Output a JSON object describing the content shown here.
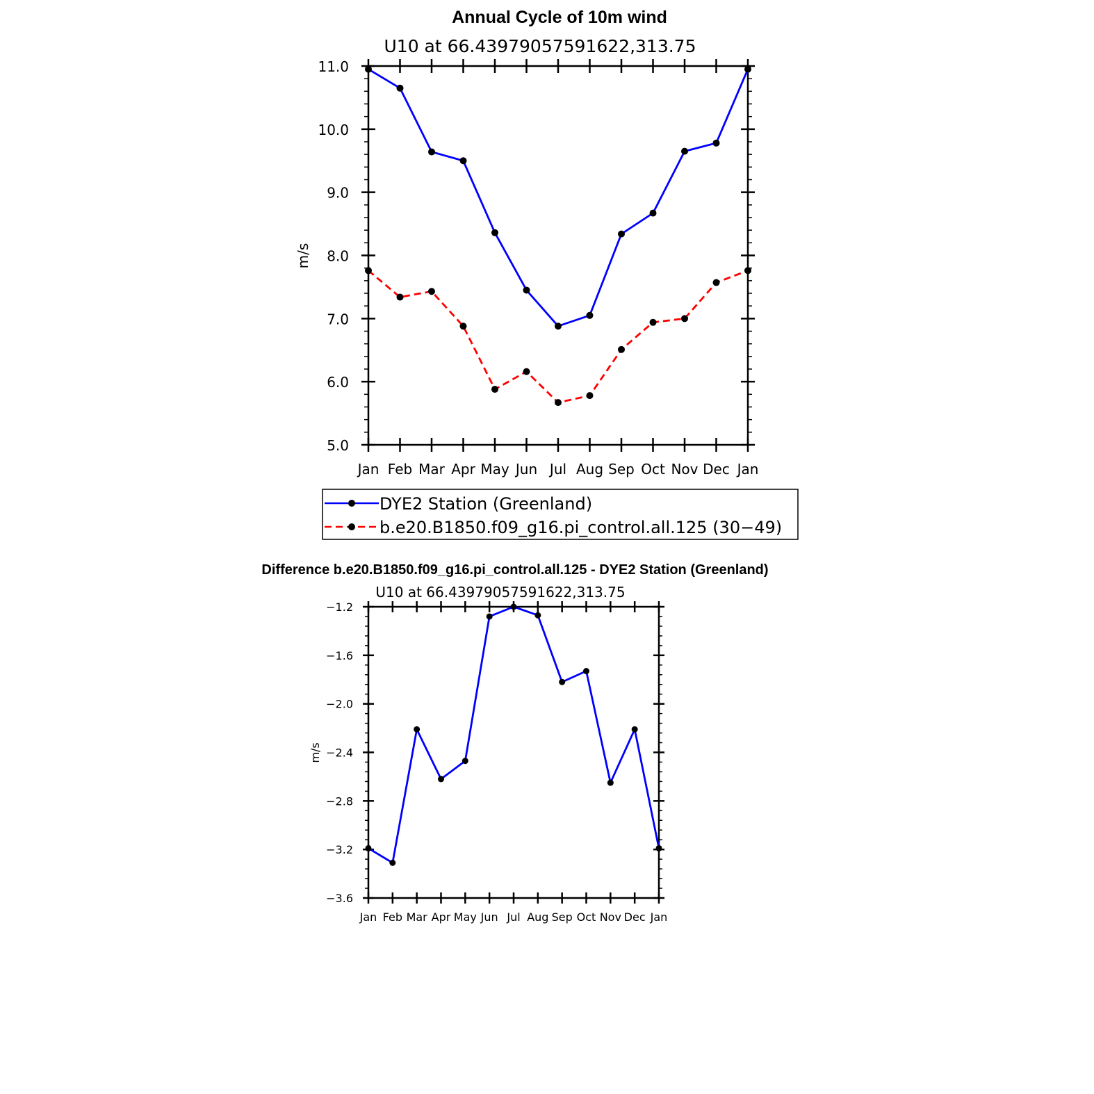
{
  "colors": {
    "obs": "#0000ff",
    "model": "#ff0000",
    "diff": "#0000ff",
    "axis": "#000000",
    "marker": "#000000"
  },
  "chart_data": [
    {
      "type": "line",
      "title": "Annual Cycle of 10m wind",
      "subtitle": "U10  at  66.43979057591622,313.75",
      "xlabel": "",
      "ylabel": "m/s",
      "categories": [
        "Jan",
        "Feb",
        "Mar",
        "Apr",
        "May",
        "Jun",
        "Jul",
        "Aug",
        "Sep",
        "Oct",
        "Nov",
        "Dec",
        "Jan"
      ],
      "ylim": [
        5.0,
        11.0
      ],
      "yticks": [
        "5.0",
        "6.0",
        "7.0",
        "8.0",
        "9.0",
        "10.0",
        "11.0"
      ],
      "legend_position": "bottom",
      "series": [
        {
          "name": "DYE2 Station (Greenland)",
          "style": "solid",
          "color": "#0000ff",
          "values": [
            10.95,
            10.65,
            9.64,
            9.5,
            8.36,
            7.45,
            6.88,
            7.05,
            8.34,
            8.67,
            9.65,
            9.78,
            10.95
          ]
        },
        {
          "name": "b.e20.B1850.f09_g16.pi_control.all.125 (30−49)",
          "style": "dashed",
          "color": "#ff0000",
          "values": [
            7.76,
            7.34,
            7.43,
            6.88,
            5.88,
            6.16,
            5.67,
            5.78,
            6.51,
            6.94,
            7.0,
            7.57,
            7.76
          ]
        }
      ],
      "grid": false
    },
    {
      "type": "line",
      "title": "Difference b.e20.B1850.f09_g16.pi_control.all.125 - DYE2 Station (Greenland)",
      "subtitle": "U10  at  66.43979057591622,313.75",
      "xlabel": "",
      "ylabel": "m/s",
      "categories": [
        "Jan",
        "Feb",
        "Mar",
        "Apr",
        "May",
        "Jun",
        "Jul",
        "Aug",
        "Sep",
        "Oct",
        "Nov",
        "Dec",
        "Jan"
      ],
      "ylim": [
        -3.6,
        -1.2
      ],
      "yticks": [
        "−3.6",
        "−3.2",
        "−2.8",
        "−2.4",
        "−2.0",
        "−1.6",
        "−1.2"
      ],
      "series": [
        {
          "style": "solid",
          "color": "#0000ff",
          "values": [
            -3.19,
            -3.31,
            -2.21,
            -2.62,
            -2.47,
            -1.28,
            -1.2,
            -1.27,
            -1.82,
            -1.73,
            -2.65,
            -2.21,
            -3.19
          ]
        }
      ],
      "grid": false
    }
  ]
}
